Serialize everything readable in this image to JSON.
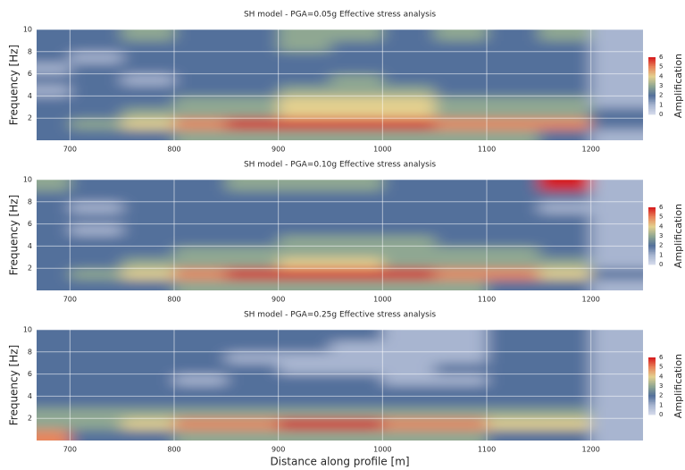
{
  "chart_data": [
    {
      "type": "heatmap",
      "title": "SH model - PGA=0.05g Effective stress analysis",
      "ylabel": "Frequency [Hz]",
      "colorbar_label": "Amplification",
      "x": [
        675,
        725,
        775,
        825,
        875,
        925,
        975,
        1025,
        1075,
        1125,
        1175,
        1225
      ],
      "y": [
        0.5,
        1.5,
        2.5,
        3.5,
        4.5,
        5.5,
        6.5,
        7.5,
        8.5,
        9.5
      ],
      "z": [
        [
          2,
          2,
          2,
          3,
          3,
          3,
          3,
          3,
          3,
          3,
          2,
          1
        ],
        [
          2,
          3,
          4,
          5,
          6,
          6,
          6,
          6,
          5,
          5,
          5,
          2
        ],
        [
          2,
          2,
          3,
          3,
          3,
          4,
          4,
          4,
          3,
          3,
          3,
          2
        ],
        [
          2,
          2,
          2,
          3,
          3,
          4,
          4,
          4,
          3,
          3,
          3,
          1
        ],
        [
          1,
          2,
          2,
          2,
          2,
          3,
          3,
          3,
          2,
          2,
          2,
          1
        ],
        [
          2,
          2,
          1,
          2,
          2,
          2,
          3,
          2,
          2,
          2,
          2,
          1
        ],
        [
          1,
          2,
          2,
          2,
          2,
          2,
          2,
          2,
          2,
          2,
          2,
          1
        ],
        [
          2,
          1,
          2,
          2,
          2,
          2,
          2,
          2,
          2,
          2,
          2,
          1
        ],
        [
          2,
          2,
          2,
          2,
          2,
          3,
          2,
          2,
          2,
          2,
          2,
          1
        ],
        [
          2,
          2,
          3,
          2,
          2,
          3,
          3,
          2,
          3,
          2,
          3,
          1
        ]
      ],
      "xlim": [
        668,
        1250
      ],
      "ylim": [
        0,
        10
      ],
      "xticks": [
        700,
        800,
        900,
        1000,
        1100,
        1200
      ],
      "yticks": [
        2,
        4,
        6,
        8,
        10
      ],
      "clim": [
        0,
        6
      ],
      "cticks": [
        0,
        1,
        2,
        3,
        4,
        5,
        6
      ],
      "colormap": [
        "#d6dcec",
        "#a8b5d0",
        "#53709b",
        "#8fa792",
        "#e3d08f",
        "#e8855b",
        "#d61a1c"
      ],
      "grid": true
    },
    {
      "type": "heatmap",
      "title": "SH model - PGA=0.10g Effective stress analysis",
      "ylabel": "Frequency [Hz]",
      "colorbar_label": "Amplification",
      "x": [
        675,
        725,
        775,
        825,
        875,
        925,
        975,
        1025,
        1075,
        1125,
        1175,
        1225
      ],
      "y": [
        0.5,
        1.5,
        2.5,
        3.5,
        4.5,
        5.5,
        6.5,
        7.5,
        8.5,
        9.5
      ],
      "z": [
        [
          2,
          2,
          2,
          3,
          3,
          3,
          3,
          3,
          3,
          2,
          2,
          1
        ],
        [
          2,
          3,
          4,
          5,
          6,
          6,
          6,
          6,
          5,
          5,
          4,
          2
        ],
        [
          2,
          2,
          3,
          3,
          3,
          4,
          4,
          3,
          3,
          3,
          3,
          1
        ],
        [
          2,
          2,
          2,
          3,
          3,
          3,
          3,
          3,
          3,
          3,
          2,
          1
        ],
        [
          2,
          2,
          2,
          2,
          2,
          3,
          3,
          3,
          2,
          2,
          2,
          1
        ],
        [
          2,
          1,
          2,
          2,
          2,
          2,
          2,
          2,
          2,
          2,
          2,
          1
        ],
        [
          2,
          2,
          2,
          2,
          2,
          2,
          2,
          2,
          2,
          2,
          2,
          1
        ],
        [
          2,
          1,
          2,
          2,
          2,
          2,
          2,
          2,
          2,
          2,
          1,
          1
        ],
        [
          2,
          2,
          2,
          2,
          2,
          2,
          2,
          2,
          2,
          2,
          2,
          1
        ],
        [
          3,
          2,
          2,
          2,
          3,
          3,
          3,
          2,
          2,
          2,
          6,
          1
        ]
      ],
      "xlim": [
        668,
        1250
      ],
      "ylim": [
        0,
        10
      ],
      "xticks": [
        700,
        800,
        900,
        1000,
        1100,
        1200
      ],
      "yticks": [
        2,
        4,
        6,
        8,
        10
      ],
      "clim": [
        0,
        6
      ],
      "cticks": [
        0,
        1,
        2,
        3,
        4,
        5,
        6
      ],
      "colormap": [
        "#d6dcec",
        "#a8b5d0",
        "#53709b",
        "#8fa792",
        "#e3d08f",
        "#e8855b",
        "#d61a1c"
      ],
      "grid": true
    },
    {
      "type": "heatmap",
      "title": "SH model - PGA=0.25g Effective stress analysis",
      "ylabel": "Frequency [Hz]",
      "xlabel": "Distance along profile [m]",
      "colorbar_label": "Amplification",
      "x": [
        675,
        725,
        775,
        825,
        875,
        925,
        975,
        1025,
        1075,
        1125,
        1175,
        1225
      ],
      "y": [
        0.5,
        1.5,
        2.5,
        3.5,
        4.5,
        5.5,
        6.5,
        7.5,
        8.5,
        9.5
      ],
      "z": [
        [
          5,
          2,
          2,
          3,
          3,
          3,
          3,
          3,
          3,
          2,
          2,
          1
        ],
        [
          3,
          3,
          4,
          5,
          5,
          6,
          6,
          5,
          5,
          4,
          4,
          1
        ],
        [
          3,
          3,
          3,
          3,
          3,
          3,
          3,
          3,
          3,
          3,
          3,
          1
        ],
        [
          2,
          2,
          2,
          2,
          2,
          2,
          2,
          2,
          2,
          2,
          2,
          1
        ],
        [
          2,
          2,
          2,
          2,
          2,
          2,
          2,
          2,
          2,
          2,
          2,
          1
        ],
        [
          2,
          2,
          2,
          1,
          2,
          2,
          2,
          1,
          1,
          2,
          2,
          1
        ],
        [
          2,
          2,
          2,
          2,
          2,
          1,
          1,
          1,
          2,
          2,
          2,
          1
        ],
        [
          2,
          2,
          2,
          2,
          1,
          1,
          1,
          1,
          1,
          2,
          2,
          1
        ],
        [
          2,
          2,
          2,
          2,
          2,
          2,
          1,
          1,
          1,
          2,
          2,
          1
        ],
        [
          2,
          2,
          2,
          2,
          2,
          2,
          2,
          1,
          1,
          2,
          2,
          1
        ]
      ],
      "xlim": [
        668,
        1250
      ],
      "ylim": [
        0,
        10
      ],
      "xticks": [
        700,
        800,
        900,
        1000,
        1100,
        1200
      ],
      "yticks": [
        2,
        4,
        6,
        8,
        10
      ],
      "clim": [
        0,
        6
      ],
      "cticks": [
        0,
        1,
        2,
        3,
        4,
        5,
        6
      ],
      "colormap": [
        "#d6dcec",
        "#a8b5d0",
        "#53709b",
        "#8fa792",
        "#e3d08f",
        "#e8855b",
        "#d61a1c"
      ],
      "grid": true
    }
  ]
}
